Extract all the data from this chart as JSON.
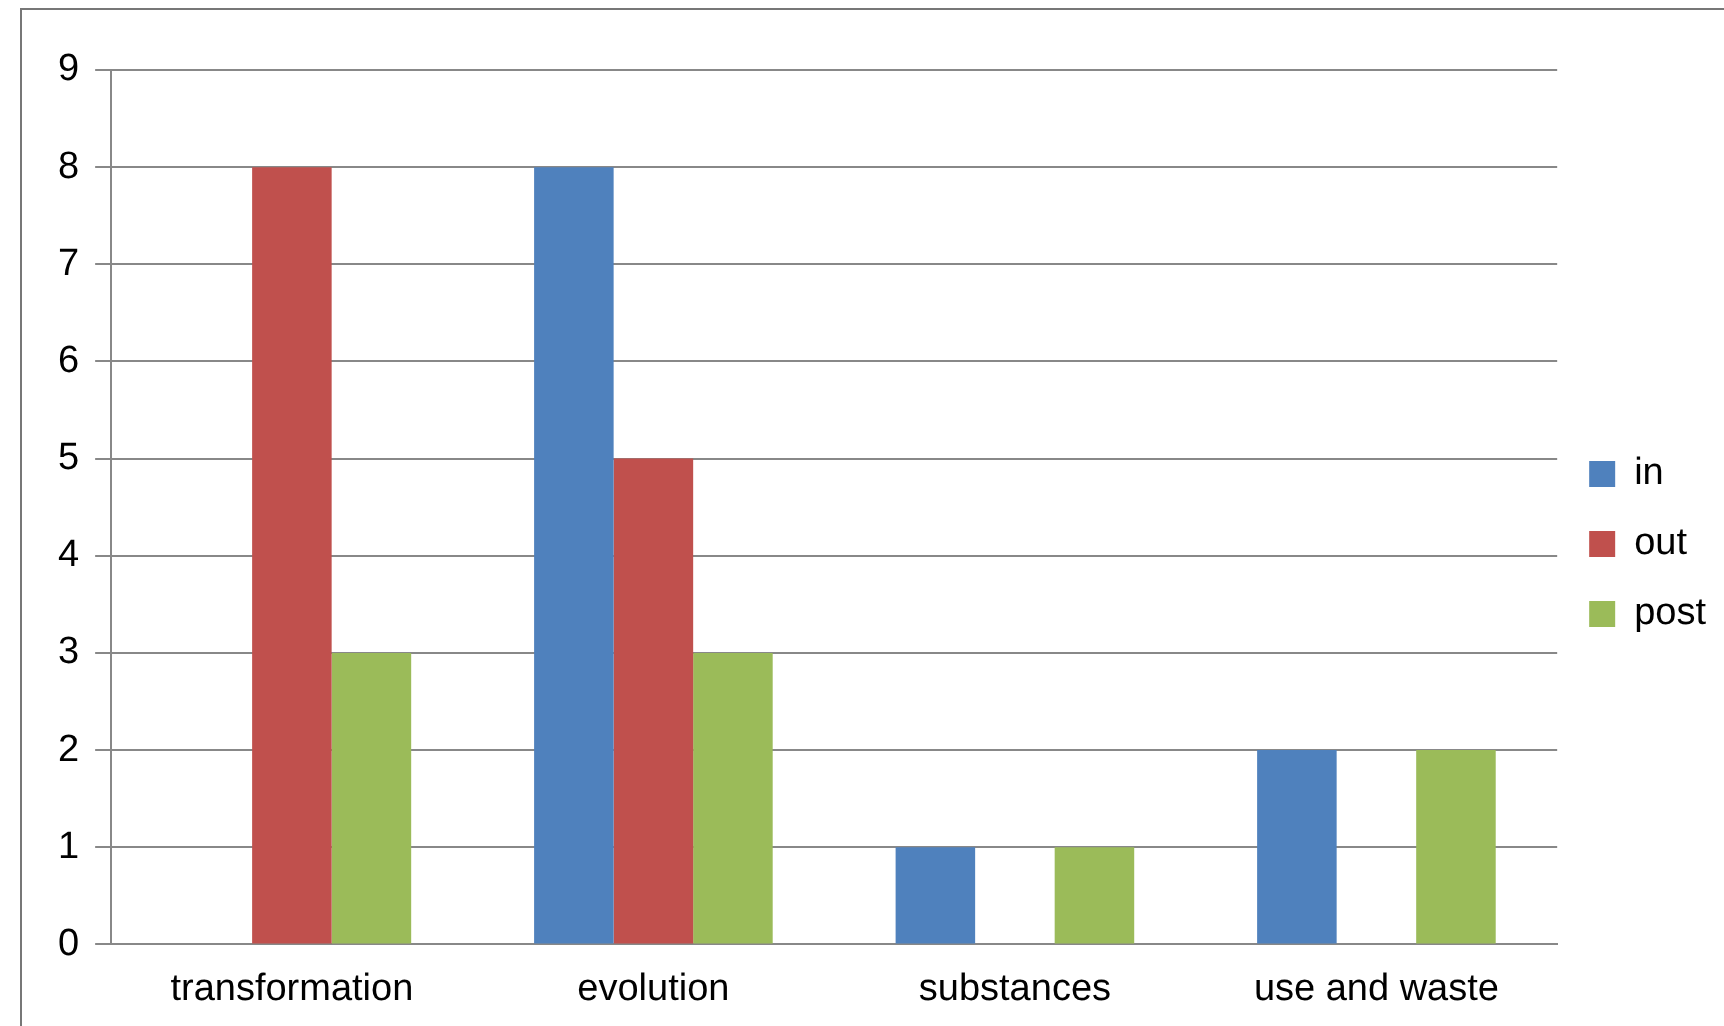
{
  "chart_data": {
    "type": "bar",
    "categories": [
      "transformation",
      "evolution",
      "substances",
      "use and waste"
    ],
    "series": [
      {
        "name": "in",
        "color": "#4f81bd",
        "values": [
          0,
          8,
          1,
          2
        ]
      },
      {
        "name": "out",
        "color": "#c0504d",
        "values": [
          8,
          5,
          0,
          0
        ]
      },
      {
        "name": "post",
        "color": "#9bbb59",
        "values": [
          3,
          3,
          1,
          2
        ]
      }
    ],
    "ylim": [
      0,
      9
    ],
    "yticks": [
      0,
      1,
      2,
      3,
      4,
      5,
      6,
      7,
      8,
      9
    ],
    "grid": "y",
    "legend": "right"
  }
}
